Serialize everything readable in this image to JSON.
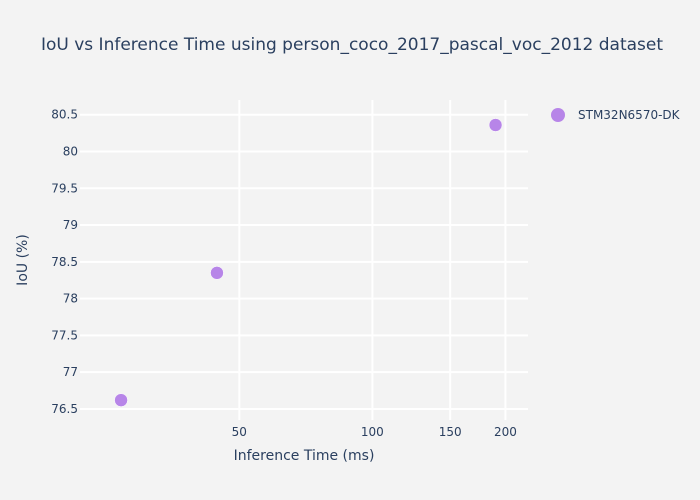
{
  "chart_data": {
    "type": "scatter",
    "title": "IoU vs Inference Time using person_coco_2017_pascal_voc_2012 dataset",
    "xlabel": "Inference Time (ms)",
    "ylabel": "IoU (%)",
    "x_scale": "log",
    "xlim": [
      21.8,
      225
    ],
    "ylim": [
      76.35,
      80.7
    ],
    "x_ticks": [
      {
        "value": 50,
        "label": "50"
      },
      {
        "value": 100,
        "label": "100"
      },
      {
        "value": 150,
        "label": "150"
      },
      {
        "value": 200,
        "label": "200"
      }
    ],
    "y_ticks": [
      {
        "value": 76.5,
        "label": "76.5"
      },
      {
        "value": 77,
        "label": "77"
      },
      {
        "value": 77.5,
        "label": "77.5"
      },
      {
        "value": 78,
        "label": "78"
      },
      {
        "value": 78.5,
        "label": "78.5"
      },
      {
        "value": 79,
        "label": "79"
      },
      {
        "value": 79.5,
        "label": "79.5"
      },
      {
        "value": 80,
        "label": "80"
      },
      {
        "value": 80.5,
        "label": "80.5"
      }
    ],
    "grid": true,
    "legend": "top-right",
    "series": [
      {
        "name": "STM32N6570-DK",
        "color": "#b785e8",
        "points": [
          {
            "x": 27,
            "y": 76.62
          },
          {
            "x": 44.5,
            "y": 78.35
          },
          {
            "x": 190,
            "y": 80.36
          }
        ]
      }
    ]
  }
}
